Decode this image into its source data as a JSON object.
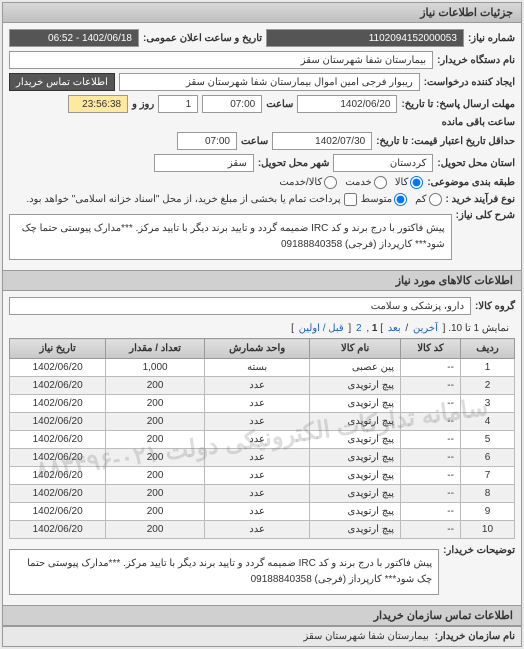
{
  "panel_title": "جزئیات اطلاعات نیاز",
  "top": {
    "req_no_label": "شماره نیاز:",
    "req_no": "1102094152000053",
    "pub_datetime_label": "تاریخ و ساعت اعلان عمومی:",
    "pub_datetime": "1402/06/18 - 06:52",
    "buyer_label": "نام دستگاه خریدار:",
    "buyer": "بیمارستان شفا شهرستان سقز",
    "requester_label": "ایجاد کننده درخواست:",
    "requester": "ریبوار فرجی امین اموال بیمارستان شفا شهرستان سقز",
    "contact_btn": "اطلاعات تماس خریدار",
    "deadline_send_label": "مهلت ارسال پاسخ: تا تاریخ:",
    "deadline_send_date": "1402/06/20",
    "time_label": "ساعت",
    "deadline_send_time": "07:00",
    "days_label": "روز و",
    "days": "1",
    "remain": "23:56:38",
    "remain_suffix": "ساعت باقی مانده",
    "validity_label": "حداقل تاریخ اعتبار قیمت: تا تاریخ:",
    "validity_date": "1402/07/30",
    "validity_time": "07:00",
    "location_label": "استان محل تحویل:",
    "location": "کردستان",
    "city_label": "شهر محل تحویل:",
    "city": "سقز",
    "budget_label": "طبقه بندی موضوعی:",
    "budget_opts": [
      "کالا",
      "خدمت",
      "کالا/خدمت"
    ],
    "process_label": "نوع فرآیند خرید :",
    "process_opts": [
      "کم",
      "متوسط"
    ],
    "process_note": "پرداخت تمام یا بخشی از مبلغ خرید، از محل \"اسناد خزانه اسلامی\" خواهد بود.",
    "main_desc_label": "شرح کلی نیاز:",
    "main_desc": "پیش فاکتور با درج برند و کد IRC ضمیمه گردد و تایید برند دیگر با تایید مرکز.  ***مدارک پیوستی حتما چک شود*** کارپرداز (فرجی) 09188840358"
  },
  "goods": {
    "section_title": "اطلاعات کالاهای مورد نیاز",
    "group_label": "گروه کالا:",
    "group": "دارو، پزشکی و سلامت",
    "pager_text": "نمایش 1 تا 10.",
    "pager_links": {
      "last": "آخرین",
      "next": "بعد",
      "p1": "1",
      "p2": "2",
      "first": "قبل / اولین"
    },
    "cols": [
      "ردیف",
      "کد کالا",
      "نام کالا",
      "واحد شمارش",
      "تعداد / مقدار",
      "تاریخ نیاز"
    ],
    "rows": [
      {
        "n": "1",
        "code": "--",
        "name": "پین عصبی",
        "unit": "بسته",
        "qty": "1,000",
        "date": "1402/06/20"
      },
      {
        "n": "2",
        "code": "--",
        "name": "پیچ ارتوپدی",
        "unit": "عدد",
        "qty": "200",
        "date": "1402/06/20"
      },
      {
        "n": "3",
        "code": "--",
        "name": "پیچ ارتوپدی",
        "unit": "عدد",
        "qty": "200",
        "date": "1402/06/20"
      },
      {
        "n": "4",
        "code": "--",
        "name": "پیچ ارتوپدی",
        "unit": "عدد",
        "qty": "200",
        "date": "1402/06/20"
      },
      {
        "n": "5",
        "code": "--",
        "name": "پیچ ارتوپدی",
        "unit": "عدد",
        "qty": "200",
        "date": "1402/06/20"
      },
      {
        "n": "6",
        "code": "--",
        "name": "پیچ ارتوپدی",
        "unit": "عدد",
        "qty": "200",
        "date": "1402/06/20"
      },
      {
        "n": "7",
        "code": "--",
        "name": "پیچ ارتوپدی",
        "unit": "عدد",
        "qty": "200",
        "date": "1402/06/20"
      },
      {
        "n": "8",
        "code": "--",
        "name": "پیچ ارتوپدی",
        "unit": "عدد",
        "qty": "200",
        "date": "1402/06/20"
      },
      {
        "n": "9",
        "code": "--",
        "name": "پیچ ارتوپدی",
        "unit": "عدد",
        "qty": "200",
        "date": "1402/06/20"
      },
      {
        "n": "10",
        "code": "--",
        "name": "پیچ ارتوپدی",
        "unit": "عدد",
        "qty": "200",
        "date": "1402/06/20"
      }
    ],
    "watermark": "سامانه تدارکات الکترونیکی دولت\n۰۲۱-۸۸۳۴۹۶",
    "buyer_notes_label": "توضیحات خریدار:",
    "buyer_notes": "پیش فاکتور با درج برند و کد IRC ضمیمه گردد و تایید برند دیگر با تایید مرکز.  ***مدارک پیوستی حتما چک شود*** کارپرداز (فرجی) 09188840358"
  },
  "footer": {
    "section_title": "اطلاعات تماس سازمان خریدار",
    "org_label": "نام سازمان خریدار:",
    "org": "بیمارستان شفا شهرستان سقز"
  }
}
